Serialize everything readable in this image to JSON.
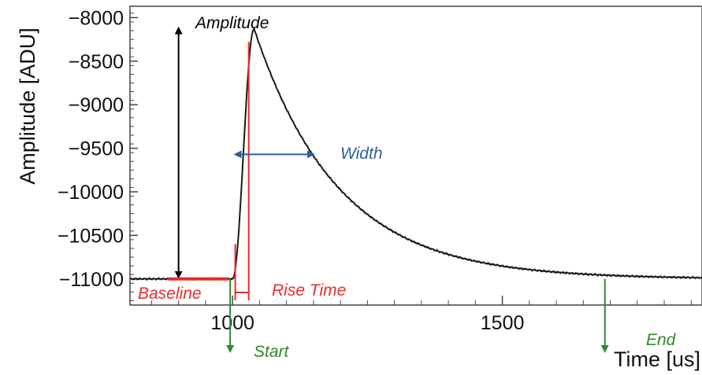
{
  "chart_data": {
    "type": "line",
    "title": "",
    "xlabel": "Time [us]",
    "ylabel": "Amplitude [ADU]",
    "xlim": [
      810,
      1870
    ],
    "ylim": [
      -11300,
      -7870
    ],
    "xticks": [
      1000,
      1500
    ],
    "xtick_labels": [
      "1000",
      "1500"
    ],
    "yticks": [
      -8000,
      -8500,
      -9000,
      -9500,
      -10000,
      -10500,
      -11000
    ],
    "ytick_labels": [
      "−8000",
      "−8500",
      "−9000",
      "−9500",
      "−10000",
      "−10500",
      "−11000"
    ],
    "grid": false,
    "legend": "none",
    "series": [
      {
        "color": "#1a1a1a",
        "baseline": -11000,
        "pulse_start": 1000,
        "peak_time": 1040,
        "peak": -8130,
        "decay_tau_us": 155,
        "x": [
          810,
          900,
          1000,
          1010,
          1020,
          1030,
          1040,
          1050,
          1070,
          1100,
          1150,
          1200,
          1300,
          1400,
          1500,
          1600,
          1700,
          1800,
          1870
        ],
        "y": [
          -10990,
          -10995,
          -11000,
          -10700,
          -9200,
          -8300,
          -8130,
          -8180,
          -8500,
          -8920,
          -9520,
          -9950,
          -10490,
          -10760,
          -10880,
          -10945,
          -10975,
          -10990,
          -10995
        ]
      }
    ],
    "annotations": {
      "amplitude": {
        "label": "Amplitude",
        "color": "#000000",
        "x": 900,
        "y_from": -11000,
        "y_to": -8120
      },
      "baseline": {
        "label": "Baseline",
        "color": "#ee2a2a",
        "x_from": 880,
        "x_to": 1000,
        "y": -11000
      },
      "rise_time": {
        "label": "Rise Time",
        "color": "#ee2a2a",
        "x_from": 1005,
        "x_to": 1030,
        "y_low": -10600,
        "y_top": -8280
      },
      "width": {
        "label": "Width",
        "color": "#2e5fa3",
        "x_from": 1005,
        "x_to": 1150,
        "y": -9570
      },
      "start": {
        "label": "Start",
        "color": "#2e8b2e",
        "x": 1000
      },
      "end": {
        "label": "End",
        "color": "#2e8b2e",
        "x": 1690
      }
    }
  }
}
